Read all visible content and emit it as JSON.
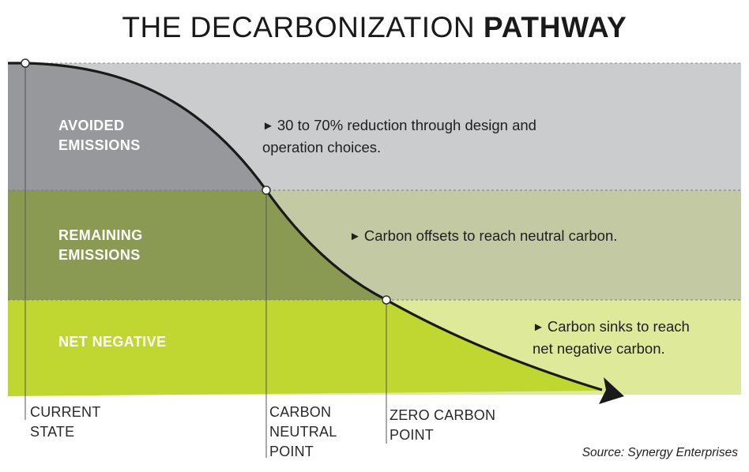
{
  "title": {
    "light": "THE DECARBONIZATION ",
    "bold": "PATHWAY"
  },
  "bands": [
    {
      "line1": "AVOIDED",
      "line2": "EMISSIONS",
      "color_left": "#97989b",
      "color_right": "#cbccce"
    },
    {
      "line1": "REMAINING",
      "line2": "EMISSIONS",
      "color_left": "#8a9a52",
      "color_right": "#c3c9a3"
    },
    {
      "line1": "NET NEGATIVE",
      "line2": "",
      "color_left": "#bfd730",
      "color_right": "#dfe99a"
    }
  ],
  "notes": [
    {
      "line1": "30 to 70% reduction through design and",
      "line2": "operation choices."
    },
    {
      "line1": "Carbon offsets to reach neutral carbon.",
      "line2": ""
    },
    {
      "line1": "Carbon sinks to reach",
      "line2": "net negative carbon."
    }
  ],
  "arrow_glyph": "►",
  "stages": [
    {
      "line1": "CURRENT STATE",
      "line2": "",
      "line3": ""
    },
    {
      "line1": "CARBON",
      "line2": "NEUTRAL",
      "line3": "POINT"
    },
    {
      "line1": "ZERO CARBON",
      "line2": "POINT",
      "line3": ""
    }
  ],
  "source": "Source: Synergy Enterprises"
}
